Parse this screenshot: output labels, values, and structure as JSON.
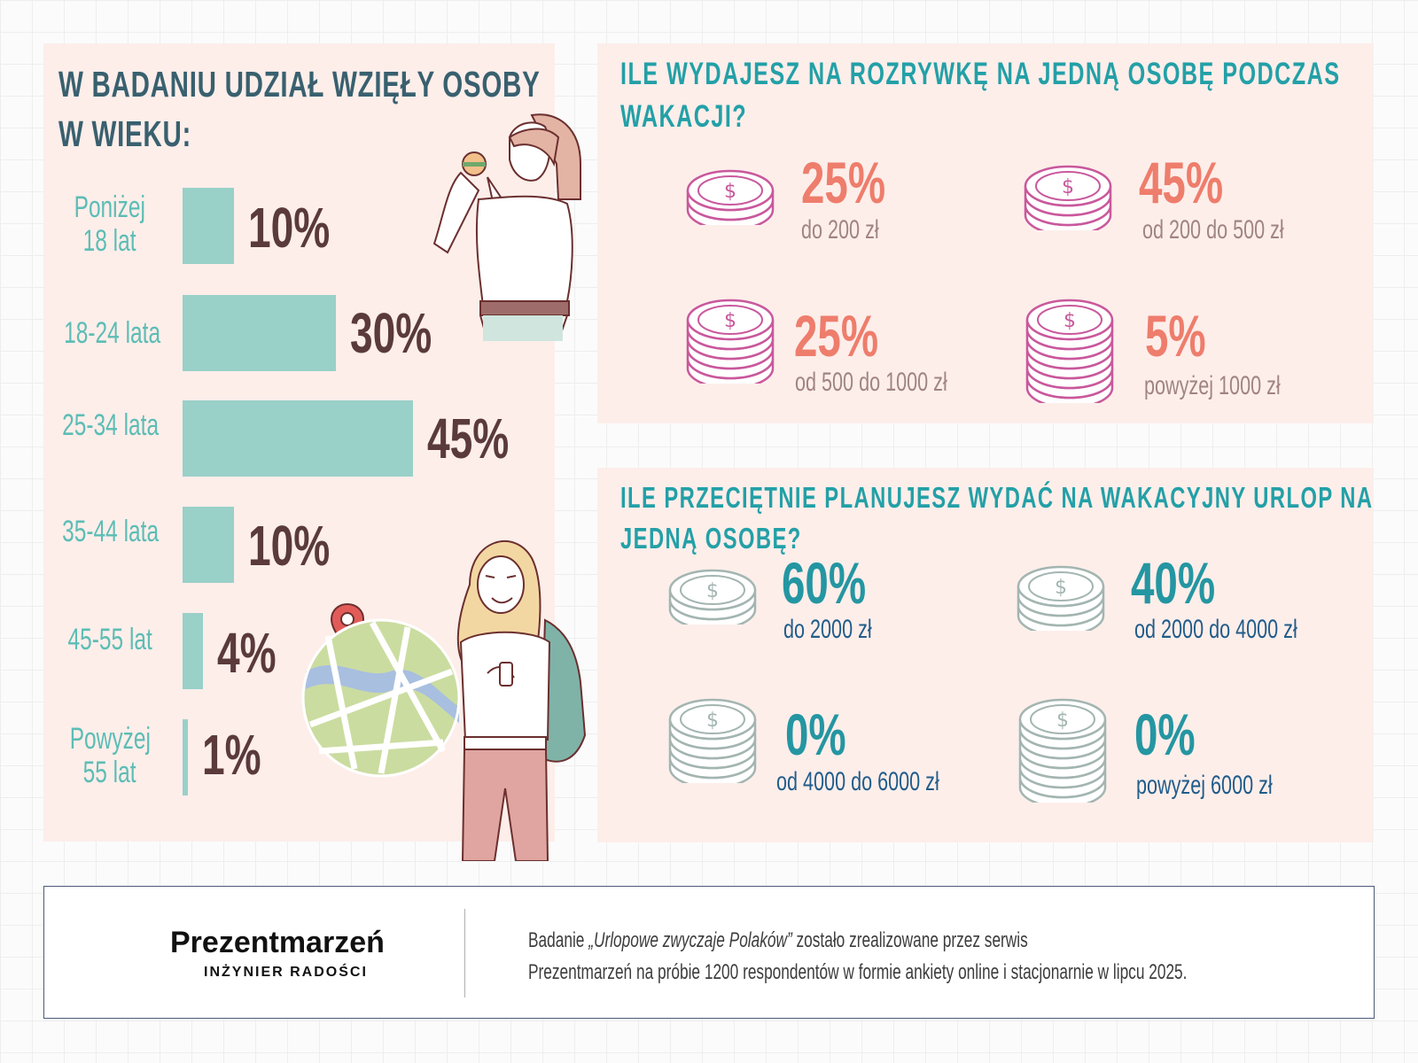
{
  "age_panel": {
    "heading_line1": "W BADANIU UDZIAŁ WZIĘŁY OSOBY",
    "heading_line2": "W WIEKU:",
    "rows": [
      {
        "label_line1": "Poniżej",
        "label_line2": "18 lat",
        "value": "10%",
        "share": 10
      },
      {
        "label_line1": "18-24 lata",
        "label_line2": "",
        "value": "30%",
        "share": 30
      },
      {
        "label_line1": "25-34 lata",
        "label_line2": "",
        "value": "45%",
        "share": 45
      },
      {
        "label_line1": "35-44 lata",
        "label_line2": "",
        "value": "10%",
        "share": 10
      },
      {
        "label_line1": "45-55 lat",
        "label_line2": "",
        "value": "4%",
        "share": 4
      },
      {
        "label_line1": "Powyżej",
        "label_line2": "55 lat",
        "value": "1%",
        "share": 1
      }
    ],
    "bar_color": "#99d0c8"
  },
  "entertainment_panel": {
    "heading_line1": "ILE WYDAJESZ NA ROZRYWKĘ NA JEDNĄ OSOBĘ PODCZAS",
    "heading_line2": "WAKACJI?",
    "items": [
      {
        "value": "25%",
        "label": "do 200 zł"
      },
      {
        "value": "45%",
        "label": "od 200 do 500 zł"
      },
      {
        "value": "25%",
        "label": "od 500 do 1000 zł"
      },
      {
        "value": "5%",
        "label": "powyżej 1000 zł"
      }
    ],
    "coin_color": "#c9589c"
  },
  "budget_panel": {
    "heading_line1": "ILE PRZECIĘTNIE PLANUJESZ WYDAĆ NA WAKACYJNY URLOP NA",
    "heading_line2": "JEDNĄ OSOBĘ?",
    "items": [
      {
        "value": "60%",
        "label": "do 2000 zł"
      },
      {
        "value": "40%",
        "label": "od 2000 do 4000 zł"
      },
      {
        "value": "0%",
        "label": "od 4000 do 6000 zł"
      },
      {
        "value": "0%",
        "label": "powyżej 6000 zł"
      }
    ],
    "coin_color": "#a3b5b1"
  },
  "footer": {
    "brand_name": "Prezentmarzeń",
    "brand_tagline": "INŻYNIER RADOŚCI",
    "note_prefix": "Badanie ",
    "note_title": "„Urlopowe zwyczaje Polaków”",
    "note_suffix": " zostało zrealizowane przez serwis",
    "note_line2": "Prezentmarzeń na próbie 1200 respondentów w formie ankiety online i stacjonarnie w lipcu 2025."
  },
  "colors": {
    "panel_bg": "#fdeeea",
    "heading_left": "#39606f",
    "heading_right": "#23a0a7",
    "percent_brown": "#5a3a3b",
    "percent_coral": "#ee7d6c",
    "percent_teal": "#2496a2"
  }
}
